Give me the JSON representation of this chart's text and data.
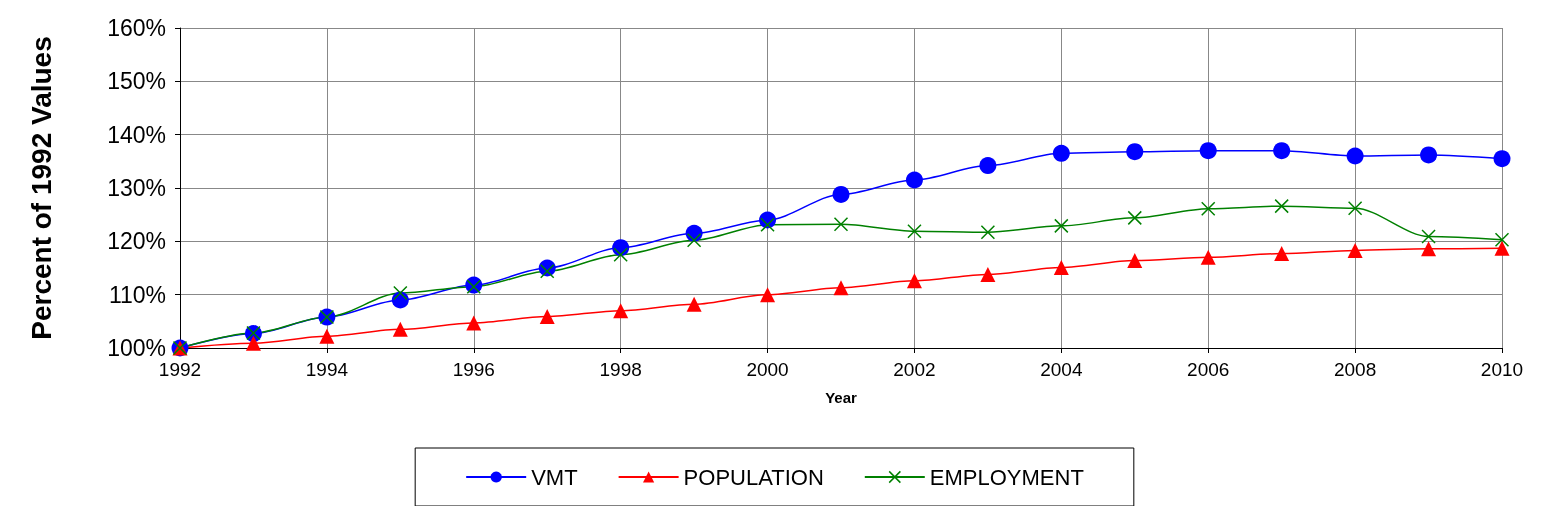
{
  "chart_data": {
    "type": "line",
    "xlabel": "Year",
    "ylabel": "Percent of 1992 Values",
    "x": [
      1992,
      1993,
      1994,
      1995,
      1996,
      1997,
      1998,
      1999,
      2000,
      2001,
      2002,
      2003,
      2004,
      2005,
      2006,
      2007,
      2008,
      2009,
      2010
    ],
    "xlim": [
      1992,
      2010
    ],
    "xticks": [
      1992,
      1994,
      1996,
      1998,
      2000,
      2002,
      2004,
      2006,
      2008,
      2010
    ],
    "ylim": [
      100,
      160
    ],
    "yticks": [
      {
        "value": 100,
        "label": "100%"
      },
      {
        "value": 110,
        "label": "110%"
      },
      {
        "value": 120,
        "label": "120%"
      },
      {
        "value": 130,
        "label": "130%"
      },
      {
        "value": 140,
        "label": "140%"
      },
      {
        "value": 150,
        "label": "150%"
      },
      {
        "value": 160,
        "label": "160%"
      }
    ],
    "grid": true,
    "legend": "bottom",
    "series": [
      {
        "name": "VMT",
        "color": "#0000ff",
        "marker": "circle",
        "values": [
          100,
          102.7,
          105.8,
          109,
          111.8,
          115,
          118.8,
          121.5,
          124,
          128.8,
          131.5,
          134.2,
          136.5,
          136.8,
          137,
          137,
          136,
          136.2,
          135.5
        ]
      },
      {
        "name": "POPULATION",
        "color": "#ff0000",
        "marker": "triangle",
        "values": [
          100,
          100.9,
          102.2,
          103.5,
          104.7,
          105.9,
          107,
          108.2,
          110,
          111.3,
          112.6,
          113.8,
          115.1,
          116.4,
          117,
          117.7,
          118.3,
          118.6,
          118.7
        ]
      },
      {
        "name": "EMPLOYMENT",
        "color": "#008000",
        "marker": "cross",
        "values": [
          100,
          102.8,
          105.8,
          110.3,
          111.5,
          114.4,
          117.5,
          120.2,
          123.1,
          123.2,
          121.9,
          121.7,
          122.9,
          124.4,
          126.1,
          126.6,
          126.2,
          120.9,
          120.3
        ]
      }
    ]
  }
}
